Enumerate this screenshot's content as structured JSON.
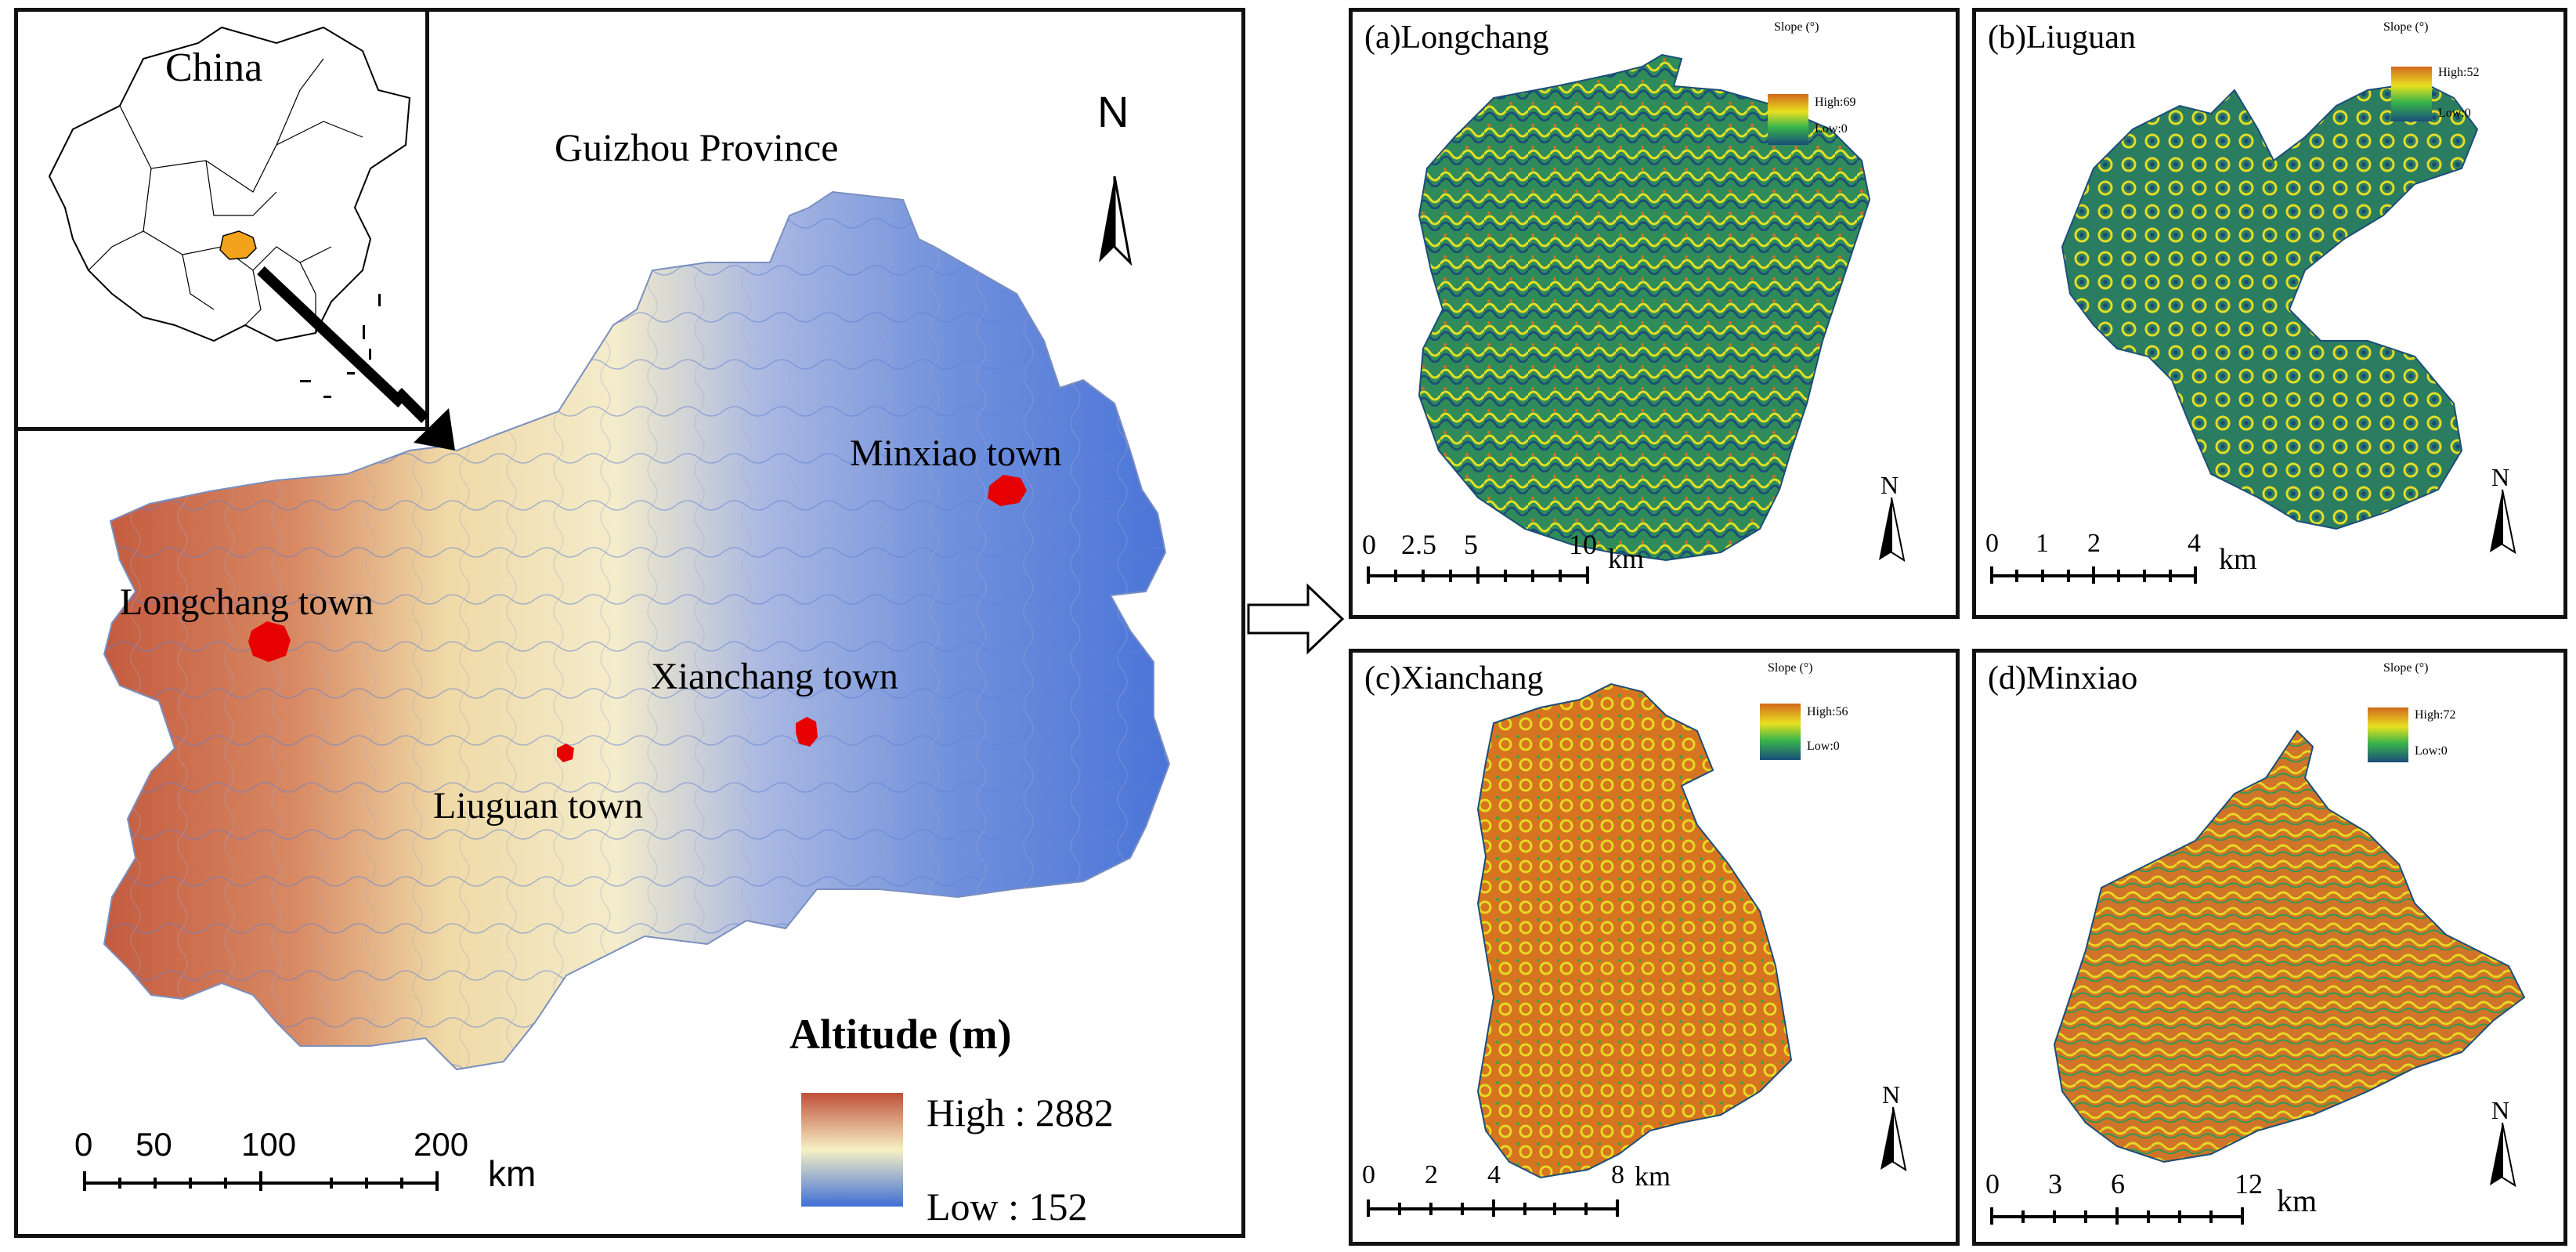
{
  "main_map": {
    "province_label": "Guizhou Province",
    "china_label": "China",
    "north_label": "N",
    "towns": [
      {
        "name": "Minxiao town"
      },
      {
        "name": "Longchang town"
      },
      {
        "name": "Xianchang town"
      },
      {
        "name": "Liuguan town"
      }
    ],
    "legend": {
      "title": "Altitude (m)",
      "high_label": "High : 2882",
      "low_label": "Low : 152",
      "high_color": "#c0503a",
      "mid_color": "#f6f0c4",
      "low_color": "#3f6fd6"
    },
    "scalebar": {
      "ticks": [
        "0",
        "50",
        "100",
        "200"
      ],
      "unit": "km"
    },
    "highlight_color": "#e60000",
    "inset_highlight_color": "#f2a21b"
  },
  "panels": [
    {
      "id": "a",
      "title": "(a)Longchang",
      "legend_title": "Slope (°)",
      "high_label": "High:69",
      "low_label": "Low:0",
      "scale_ticks": [
        "0",
        "2.5",
        "5",
        "10"
      ],
      "scale_unit": "km",
      "north_label": "N"
    },
    {
      "id": "b",
      "title": "(b)Liuguan",
      "legend_title": "Slope (°)",
      "high_label": "High:52",
      "low_label": "Low:0",
      "scale_ticks": [
        "0",
        "1",
        "2",
        "4"
      ],
      "scale_unit": "km",
      "north_label": "N"
    },
    {
      "id": "c",
      "title": "(c)Xianchang",
      "legend_title": "Slope (°)",
      "high_label": "High:56",
      "low_label": "Low:0",
      "scale_ticks": [
        "0",
        "2",
        "4",
        "8"
      ],
      "scale_unit": "km",
      "north_label": "N"
    },
    {
      "id": "d",
      "title": "(d)Minxiao",
      "legend_title": "Slope (°)",
      "high_label": "High:72",
      "low_label": "Low:0",
      "scale_ticks": [
        "0",
        "3",
        "6",
        "12"
      ],
      "scale_unit": "km",
      "north_label": "N"
    }
  ],
  "slope_colors": {
    "high": "#d2691e",
    "mid": "#e8e020",
    "mid2": "#39b54a",
    "low": "#1a4d7a"
  }
}
